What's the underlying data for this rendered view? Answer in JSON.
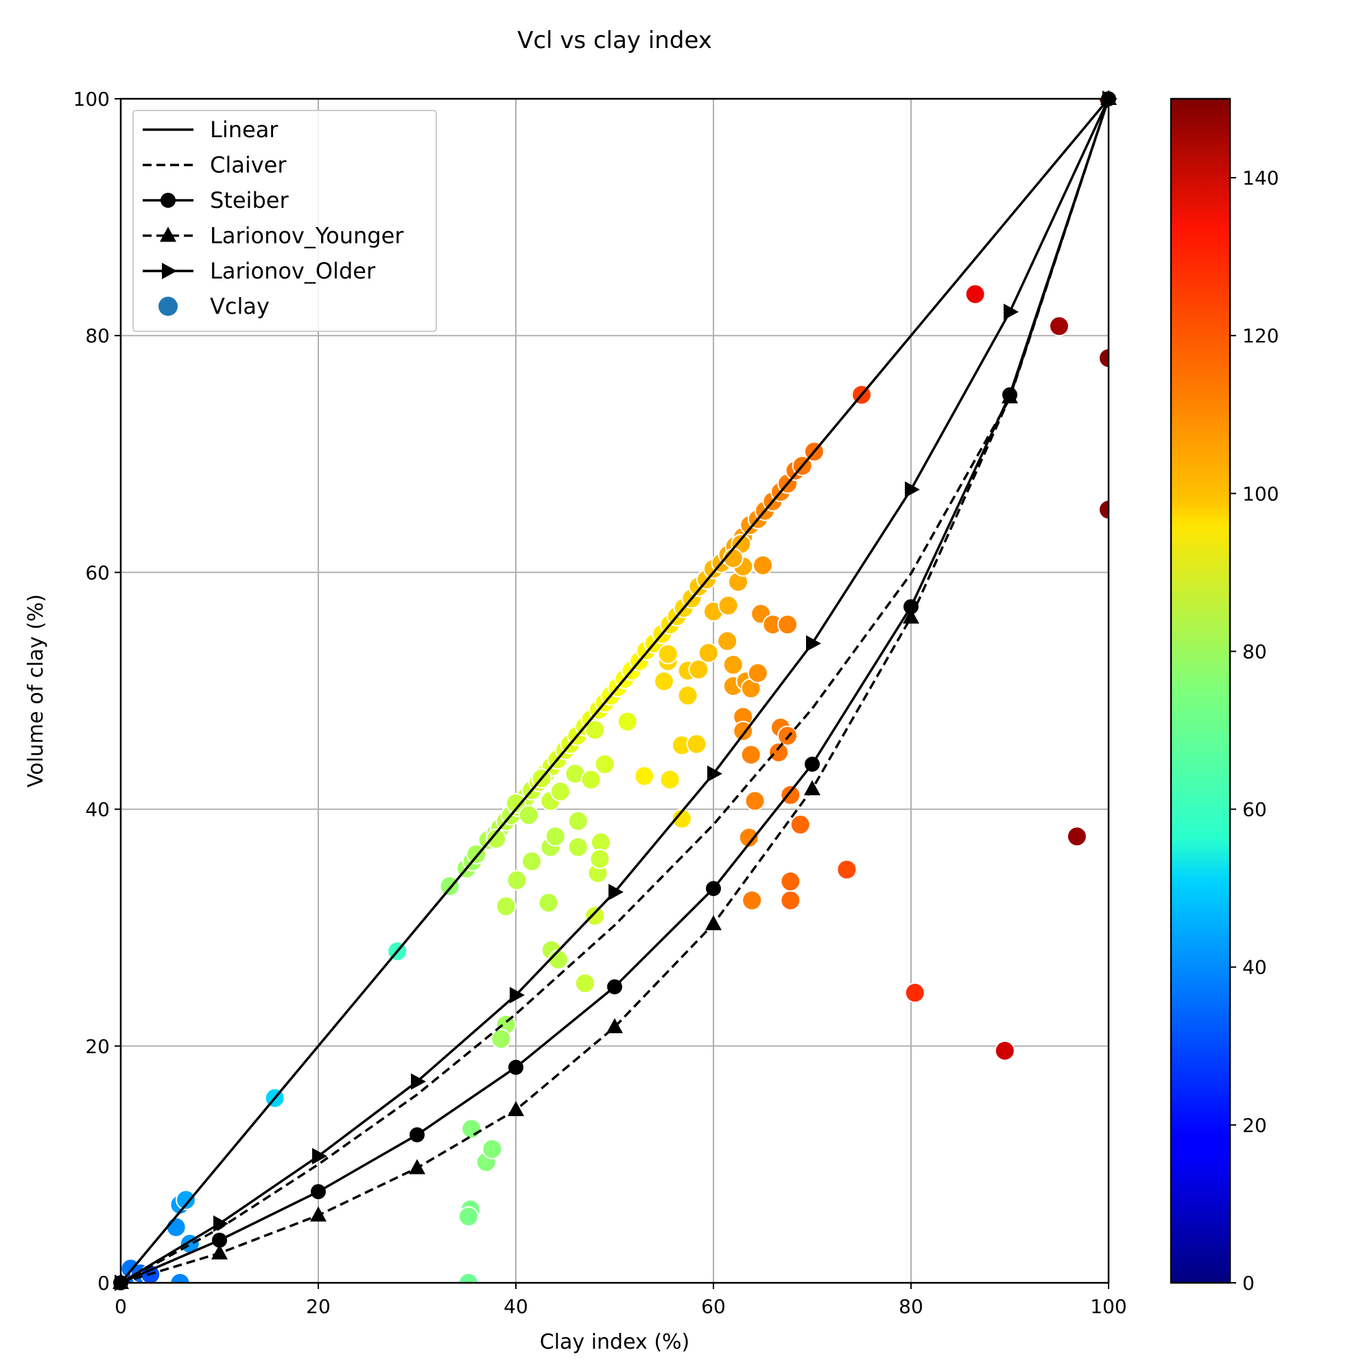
{
  "chart_data": {
    "type": "scatter",
    "title": "Vcl vs clay index",
    "xlabel": "Clay index (%)",
    "ylabel": "Volume of clay (%)",
    "xlim": [
      0,
      100
    ],
    "ylim": [
      0,
      100
    ],
    "xticks": [
      "0",
      "20",
      "40",
      "60",
      "80",
      "100"
    ],
    "yticks": [
      "0",
      "20",
      "40",
      "60",
      "80",
      "100"
    ],
    "grid": true,
    "legend_position": "upper-left",
    "colorbar": {
      "range": [
        0,
        150
      ],
      "ticks": [
        "0",
        "20",
        "40",
        "60",
        "80",
        "100",
        "120",
        "140"
      ],
      "colormap": "jet"
    },
    "series": [
      {
        "name": "Linear",
        "style": "solid",
        "marker": "none",
        "x": [
          0,
          100
        ],
        "y": [
          0,
          100
        ]
      },
      {
        "name": "Claiver",
        "style": "dashed",
        "marker": "none",
        "x": [
          0,
          10,
          20,
          30,
          40,
          50,
          60,
          70,
          80,
          90,
          100
        ],
        "y": [
          0,
          4.6,
          10,
          15.9,
          22.7,
          30.2,
          38.7,
          48.5,
          59.9,
          74.7,
          100
        ]
      },
      {
        "name": "Steiber",
        "style": "solid",
        "marker": "circle",
        "x": [
          0,
          10,
          20,
          30,
          40,
          50,
          60,
          70,
          80,
          90,
          100
        ],
        "y": [
          0,
          3.6,
          7.7,
          12.5,
          18.2,
          25,
          33.3,
          43.8,
          57.1,
          75,
          100
        ]
      },
      {
        "name": "Larionov_Younger",
        "style": "dashed",
        "marker": "triangle-up",
        "x": [
          0,
          10,
          20,
          30,
          40,
          50,
          60,
          70,
          80,
          90,
          100
        ],
        "y": [
          0,
          2.5,
          5.7,
          9.7,
          14.6,
          21.6,
          30.3,
          41.7,
          56.2,
          74.8,
          100
        ]
      },
      {
        "name": "Larionov_Older",
        "style": "solid",
        "marker": "triangle-right",
        "x": [
          0,
          10,
          20,
          30,
          40,
          50,
          60,
          70,
          80,
          90,
          100
        ],
        "y": [
          0,
          5.0,
          10.7,
          17.0,
          24.3,
          33.0,
          43.0,
          54.0,
          67.0,
          82.0,
          100
        ]
      }
    ],
    "scatter": {
      "name": "Vclay",
      "points": [
        [
          0.5,
          0.5,
          35
        ],
        [
          1,
          1.2,
          36
        ],
        [
          2,
          0.8,
          34
        ],
        [
          3,
          0.7,
          30
        ],
        [
          5.6,
          4.7,
          40
        ],
        [
          6,
          6.6,
          42
        ],
        [
          6.6,
          7.0,
          43
        ],
        [
          7,
          3.3,
          41
        ],
        [
          6,
          0,
          38
        ],
        [
          15.6,
          15.6,
          50
        ],
        [
          28,
          28,
          65
        ],
        [
          33.3,
          33.5,
          78
        ],
        [
          35,
          35,
          80
        ],
        [
          35.6,
          35.6,
          80
        ],
        [
          36,
          36.2,
          81
        ],
        [
          37.2,
          37.4,
          82
        ],
        [
          38,
          38,
          82
        ],
        [
          38.4,
          38.4,
          83
        ],
        [
          39,
          39,
          84
        ],
        [
          39.5,
          39.5,
          84
        ],
        [
          40.2,
          40.2,
          85
        ],
        [
          41,
          41,
          86
        ],
        [
          41.6,
          41.6,
          86
        ],
        [
          42.3,
          42.3,
          87
        ],
        [
          43,
          43,
          87
        ],
        [
          43.6,
          43.6,
          88
        ],
        [
          44.2,
          44.2,
          88
        ],
        [
          45,
          45,
          89
        ],
        [
          45.5,
          45.5,
          89
        ],
        [
          46.2,
          46.2,
          90
        ],
        [
          47,
          47,
          90
        ],
        [
          47.6,
          47.6,
          91
        ],
        [
          48.4,
          48.4,
          91
        ],
        [
          49,
          49,
          92
        ],
        [
          49.6,
          49.6,
          92
        ],
        [
          50.3,
          50.3,
          93
        ],
        [
          51,
          51,
          93
        ],
        [
          51.7,
          51.7,
          94
        ],
        [
          52.5,
          52.5,
          95
        ],
        [
          53.2,
          53.4,
          96
        ],
        [
          54,
          54,
          96
        ],
        [
          54.8,
          54.8,
          97
        ],
        [
          55.6,
          55.6,
          98
        ],
        [
          56.3,
          56.3,
          99
        ],
        [
          57,
          57,
          100
        ],
        [
          57.8,
          57.8,
          101
        ],
        [
          58.5,
          58.8,
          102
        ],
        [
          59.3,
          59.4,
          103
        ],
        [
          60,
          60.3,
          104
        ],
        [
          60.8,
          60.8,
          105
        ],
        [
          61.5,
          61.5,
          106
        ],
        [
          62.2,
          62.2,
          107
        ],
        [
          63,
          63,
          108
        ],
        [
          63.7,
          64,
          109
        ],
        [
          64.5,
          64.5,
          110
        ],
        [
          65.2,
          65.2,
          111
        ],
        [
          66,
          66,
          112
        ],
        [
          66.8,
          66.8,
          112
        ],
        [
          67.5,
          67.5,
          113
        ],
        [
          68.3,
          68.6,
          114
        ],
        [
          69,
          69,
          114
        ],
        [
          70.2,
          70.2,
          115
        ],
        [
          75,
          75,
          122
        ],
        [
          38,
          37.5,
          84
        ],
        [
          40,
          40.5,
          85
        ],
        [
          41.3,
          39.5,
          84
        ],
        [
          43.5,
          40.7,
          86
        ],
        [
          44.5,
          41.5,
          86
        ],
        [
          46,
          43,
          86
        ],
        [
          47.6,
          42.5,
          87
        ],
        [
          48,
          46.7,
          88
        ],
        [
          49,
          43.8,
          88
        ],
        [
          51.3,
          47.4,
          90
        ],
        [
          42.6,
          42.6,
          87
        ],
        [
          43.5,
          36.8,
          84
        ],
        [
          44,
          37.7,
          84
        ],
        [
          46.3,
          39,
          85
        ],
        [
          46.3,
          36.8,
          85
        ],
        [
          48.6,
          37.2,
          86
        ],
        [
          48.3,
          34.6,
          86
        ],
        [
          48.5,
          35.8,
          86
        ],
        [
          48,
          31,
          87
        ],
        [
          39,
          31.8,
          84
        ],
        [
          40.1,
          34.0,
          84
        ],
        [
          41.6,
          35.6,
          84
        ],
        [
          43.3,
          32.1,
          84
        ],
        [
          43.6,
          28.1,
          84
        ],
        [
          44.3,
          27.3,
          84
        ],
        [
          47,
          25.3,
          86
        ],
        [
          39,
          21.8,
          80
        ],
        [
          38.5,
          20.6,
          80
        ],
        [
          35.5,
          13.0,
          76
        ],
        [
          37,
          10.2,
          76
        ],
        [
          37.6,
          11.3,
          76
        ],
        [
          35.4,
          6.2,
          74
        ],
        [
          35.2,
          5.6,
          74
        ],
        [
          35.2,
          0,
          72
        ],
        [
          53,
          42.8,
          96
        ],
        [
          55.6,
          42.5,
          97
        ],
        [
          56.8,
          39.2,
          98
        ],
        [
          56.8,
          45.4,
          99
        ],
        [
          58.3,
          45.5,
          100
        ],
        [
          57.4,
          49.6,
          100
        ],
        [
          55,
          50.8,
          99
        ],
        [
          55.4,
          52.5,
          100
        ],
        [
          55.4,
          53.1,
          100
        ],
        [
          57.4,
          51.7,
          101
        ],
        [
          58.5,
          51.8,
          102
        ],
        [
          59.5,
          53.2,
          103
        ],
        [
          60,
          56.7,
          104
        ],
        [
          61.5,
          57.2,
          105
        ],
        [
          61.4,
          54.2,
          106
        ],
        [
          62,
          52.2,
          107
        ],
        [
          62,
          50.4,
          108
        ],
        [
          63.3,
          50.8,
          108
        ],
        [
          63.8,
          50.2,
          109
        ],
        [
          64.5,
          51.5,
          110
        ],
        [
          63,
          47.8,
          111
        ],
        [
          63,
          46.6,
          111
        ],
        [
          63.8,
          44.6,
          112
        ],
        [
          64.2,
          40.7,
          112
        ],
        [
          63.6,
          37.6,
          112
        ],
        [
          63.9,
          32.3,
          113
        ],
        [
          65,
          60.6,
          109
        ],
        [
          64.8,
          56.5,
          110
        ],
        [
          66,
          55.6,
          111
        ],
        [
          67.5,
          55.6,
          112
        ],
        [
          66.8,
          46.9,
          113
        ],
        [
          67.5,
          46.2,
          114
        ],
        [
          66.6,
          44.8,
          114
        ],
        [
          67.8,
          41.2,
          115
        ],
        [
          68.8,
          38.7,
          116
        ],
        [
          67.8,
          32.3,
          116
        ],
        [
          67.8,
          33.9,
          116
        ],
        [
          73.5,
          34.9,
          120
        ],
        [
          62.5,
          59.2,
          106
        ],
        [
          63,
          60.5,
          106
        ],
        [
          62.8,
          62.4,
          106
        ],
        [
          62,
          61.2,
          106
        ],
        [
          80.4,
          24.5,
          125
        ],
        [
          86.5,
          83.5,
          134
        ],
        [
          89.5,
          19.6,
          138
        ],
        [
          95,
          80.8,
          145
        ],
        [
          96.8,
          37.7,
          147
        ],
        [
          100,
          78.1,
          149
        ],
        [
          100,
          65.3,
          149
        ],
        [
          100,
          100,
          150
        ]
      ]
    }
  }
}
